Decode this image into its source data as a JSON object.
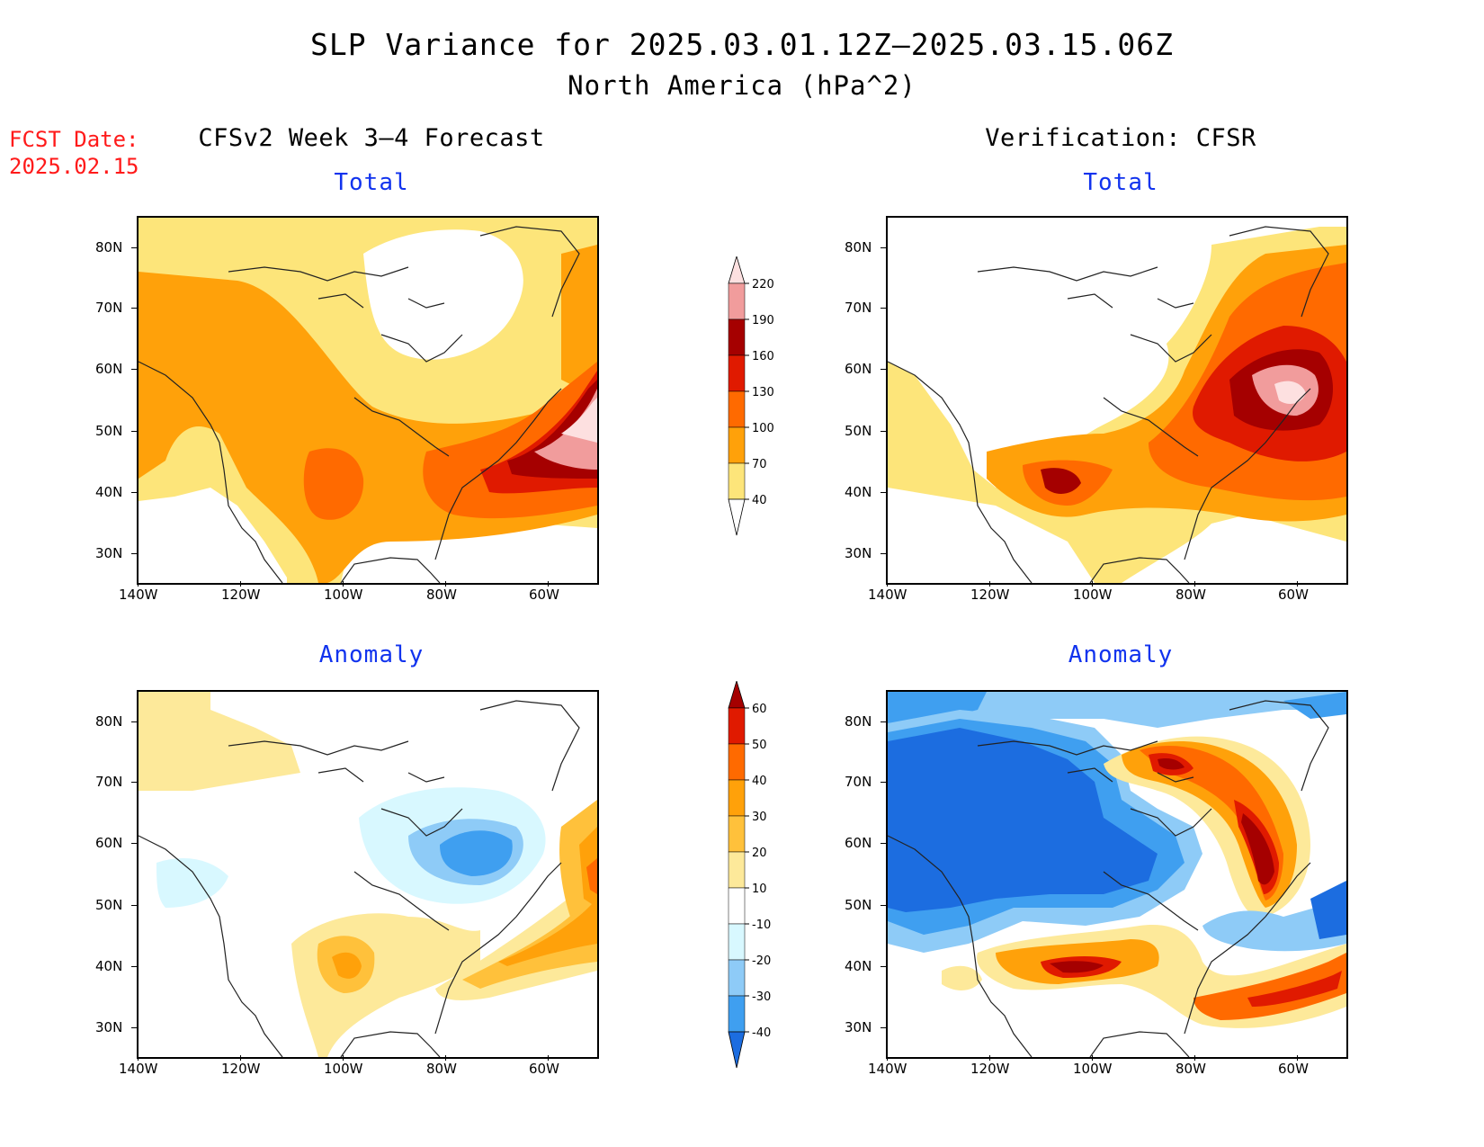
{
  "header": {
    "title_line1": "SLP Variance for 2025.03.01.12Z–2025.03.15.06Z",
    "title_line2": "North America (hPa^2)",
    "fcst_label": "FCST Date:",
    "fcst_date": "2025.02.15"
  },
  "columns": {
    "left": "CFSv2 Week 3–4 Forecast",
    "right": "Verification: CFSR"
  },
  "panels": {
    "forecast_total": {
      "title": "Total"
    },
    "forecast_anomaly": {
      "title": "Anomaly"
    },
    "verification_total": {
      "title": "Total"
    },
    "verification_anomaly": {
      "title": "Anomaly"
    }
  },
  "axes": {
    "lat_labels": [
      "80N",
      "70N",
      "60N",
      "50N",
      "40N",
      "30N"
    ],
    "lon_labels": [
      "140W",
      "120W",
      "100W",
      "80W",
      "60W"
    ]
  },
  "colorbars": {
    "total": {
      "levels": [
        "40",
        "70",
        "100",
        "130",
        "160",
        "190",
        "220"
      ],
      "colors": [
        "#fde57a",
        "#ffa10a",
        "#ff6a00",
        "#e01a00",
        "#a50000",
        "#f19c9c",
        "#fde0e0"
      ]
    },
    "anomaly": {
      "levels": [
        "60",
        "50",
        "40",
        "30",
        "20",
        "10",
        "-10",
        "-20",
        "-30",
        "-40"
      ],
      "colors": [
        "#a50000",
        "#e01a00",
        "#ff6a00",
        "#ffa10a",
        "#ffc13b",
        "#fde99a",
        "#ffffff",
        "#d8f8ff",
        "#8ecbf7",
        "#3f9ff0",
        "#1c6de0"
      ]
    }
  }
}
